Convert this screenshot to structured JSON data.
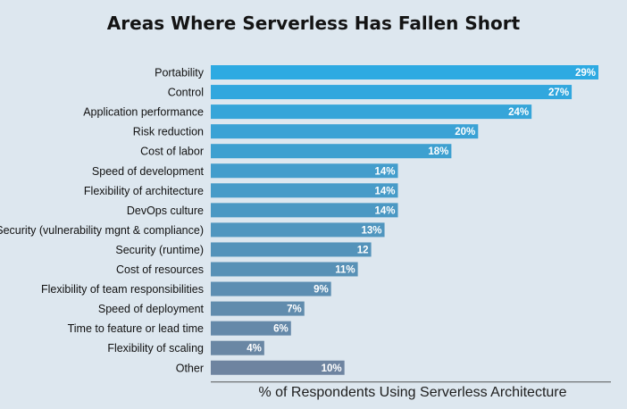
{
  "chart_data": {
    "type": "bar",
    "orientation": "horizontal",
    "title": "Areas Where Serverless Has Fallen Short",
    "xlabel": "% of Respondents Using Serverless Architecture",
    "ylabel": "",
    "xlim": [
      0,
      30
    ],
    "grid": false,
    "legend": "none",
    "categories": [
      "Portability",
      "Control",
      "Application performance",
      "Risk reduction",
      "Cost of labor",
      "Speed of development",
      "Flexibility of architecture",
      "DevOps culture",
      "Security (vulnerability mgnt & compliance)",
      "Security (runtime)",
      "Cost of resources",
      "Flexibility of team responsibilities",
      "Speed of deployment",
      "Time to feature or lead time",
      "Flexibility of scaling",
      "Other"
    ],
    "values": [
      29,
      27,
      24,
      20,
      18,
      14,
      14,
      14,
      13,
      12,
      11,
      9,
      7,
      6,
      4,
      10
    ],
    "value_labels": [
      "29%",
      "27%",
      "24%",
      "20%",
      "18%",
      "14%",
      "14%",
      "14%",
      "13%",
      "12",
      "11%",
      "9%",
      "7%",
      "6%",
      "4%",
      "10%"
    ],
    "colors": {
      "background": "#dde7ef",
      "bar_top": "#2daae2",
      "bar_bottom": "#6e84a0",
      "axis": "#555555"
    }
  }
}
